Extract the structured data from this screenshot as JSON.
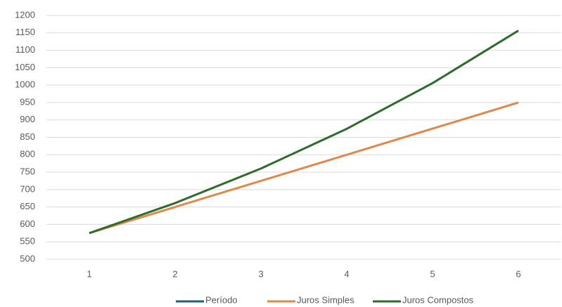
{
  "chart_data": {
    "type": "line",
    "categories": [
      "1",
      "2",
      "3",
      "4",
      "5",
      "6"
    ],
    "series": [
      {
        "name": "Período",
        "color": "#1f5f7a",
        "values": [
          null,
          null,
          null,
          null,
          null,
          null
        ]
      },
      {
        "name": "Juros Simples",
        "color": "#e0874a",
        "values": [
          575,
          650,
          725,
          800,
          875,
          950
        ]
      },
      {
        "name": "Juros Compostos",
        "color": "#2e6b2e",
        "values": [
          575,
          661.25,
          760.44,
          874.5,
          1005.68,
          1156.53
        ]
      }
    ],
    "ylim": [
      500,
      1200
    ],
    "yticks": [
      500,
      550,
      600,
      650,
      700,
      750,
      800,
      850,
      900,
      950,
      1000,
      1050,
      1100,
      1150,
      1200
    ],
    "grid": true,
    "legend": "bottom"
  }
}
